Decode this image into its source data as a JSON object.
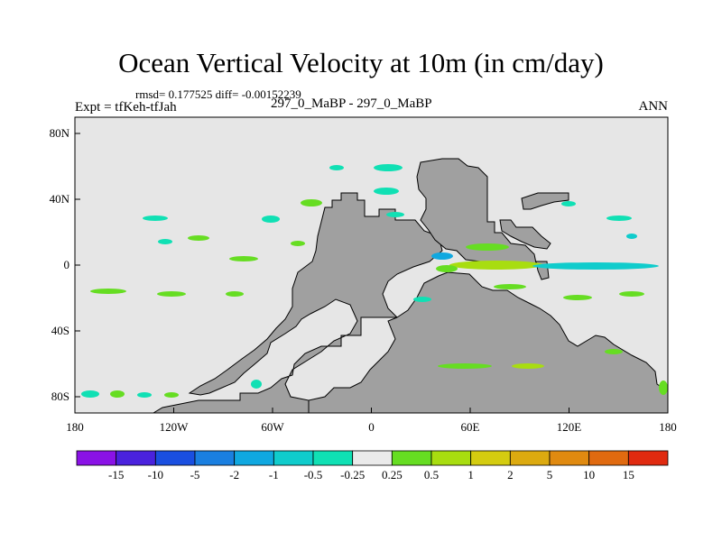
{
  "title": "Ocean Vertical Velocity at 10m (in cm/day)",
  "stats_line": "rmsd= 0.177525  diff= -0.00152239",
  "experiment": "Expt = tfKeh-tfJah",
  "comparison": "297_0_MaBP - 297_0_MaBP",
  "season": "ANN",
  "axes": {
    "x_ticks": [
      "180",
      "120W",
      "60W",
      "0",
      "60E",
      "120E",
      "180"
    ],
    "y_ticks": [
      "80N",
      "40N",
      "0",
      "40S",
      "80S"
    ]
  },
  "colorbar": {
    "labels": [
      "-15",
      "-10",
      "-5",
      "-2",
      "-1",
      "-0.5",
      "-0.25",
      "0.25",
      "0.5",
      "1",
      "2",
      "5",
      "10",
      "15"
    ],
    "colors": [
      "#8a12e6",
      "#4a22dd",
      "#1a4fe0",
      "#1a7fe0",
      "#10a8e0",
      "#10cccc",
      "#10e0b4",
      "#eaeaea",
      "#66dd22",
      "#a8dd10",
      "#d4cc10",
      "#dcaa10",
      "#e08a10",
      "#e06a10",
      "#e02a10"
    ]
  },
  "map_colors": {
    "ocean": "#e6e6e6",
    "land": "#a0a0a0"
  }
}
